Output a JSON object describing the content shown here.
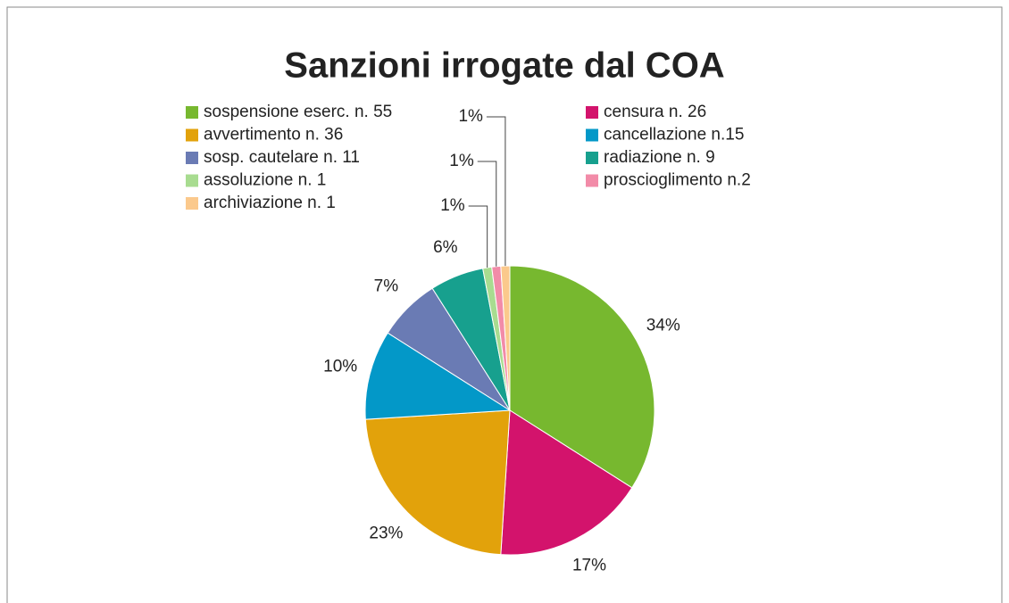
{
  "chart_data": {
    "type": "pie",
    "title": "Sanzioni irrogate dal COA",
    "categories": [
      "sospensione eserc. n. 55",
      "censura n. 26",
      "avvertimento n. 36",
      "cancellazione n.15",
      "sosp. cautelare  n. 11",
      "radiazione n. 9",
      "assoluzione n. 1",
      "proscioglimento n.2",
      "archiviazione n. 1"
    ],
    "values": [
      34,
      17,
      23,
      10,
      7,
      6,
      1,
      1,
      1
    ],
    "value_labels": [
      "34%",
      "17%",
      "23%",
      "10%",
      "7%",
      "6%",
      "1%",
      "1%",
      "1%"
    ],
    "colors": [
      "#77b82f",
      "#d3136c",
      "#e2a20b",
      "#0398c8",
      "#6a7bb4",
      "#17a08e",
      "#a8dc90",
      "#f28ba8",
      "#fbc98c"
    ],
    "legend": "top"
  }
}
